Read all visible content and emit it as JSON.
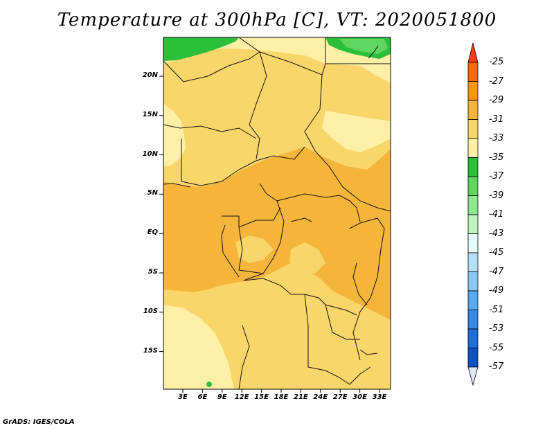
{
  "title": "Temperature at 300hPa [C], VT: 2020051800",
  "credit": "GrADS: IGES/COLA",
  "lat_labels": [
    "20N",
    "15N",
    "10N",
    "5N",
    "EQ",
    "5S",
    "10S",
    "15S"
  ],
  "lon_labels": [
    "3E",
    "6E",
    "9E",
    "12E",
    "15E",
    "18E",
    "21E",
    "24E",
    "27E",
    "30E",
    "33E"
  ],
  "colorbar": {
    "labels": [
      "-25",
      "-27",
      "-29",
      "-31",
      "-33",
      "-35",
      "-37",
      "-39",
      "-41",
      "-43",
      "-45",
      "-47",
      "-49",
      "-51",
      "-53",
      "-55",
      "-57"
    ],
    "colors": [
      "#ff3a10",
      "#f86a00",
      "#f59a00",
      "#f5b53a",
      "#f9d66a",
      "#fdf0a6",
      "#2cbf3a",
      "#5fd65f",
      "#8ee88e",
      "#c2f4c2",
      "#e6fbfb",
      "#b4e0f7",
      "#8ac8f2",
      "#5ba9ee",
      "#3a8ae8",
      "#1f6fd9",
      "#0f52c1",
      "#08389d",
      "#04106e"
    ],
    "top_arrow_color": "#ff3a10",
    "bottom_arrow_color": "#e4e6f8"
  },
  "map_colors": {
    "t31": "#f9d66a",
    "t33": "#fdf0a6",
    "t29": "#f5b53a",
    "t37": "#2cbf3a",
    "t39": "#5fd65f"
  }
}
